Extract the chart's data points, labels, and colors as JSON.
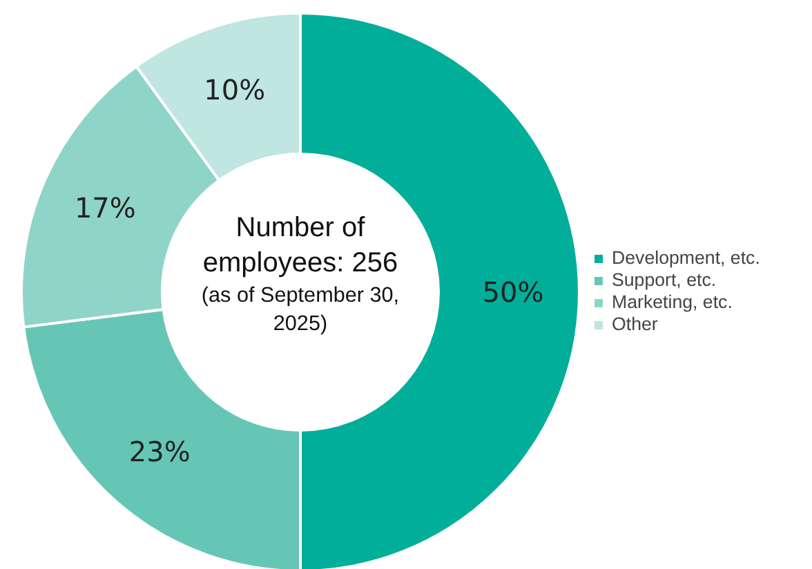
{
  "chart_data": {
    "type": "donut",
    "title": "Number of\nemployees: 256",
    "subtitle": "(as of September 30,\n2025)",
    "categories": [
      "Development, etc.",
      "Support, etc.",
      "Marketing, etc.",
      "Other"
    ],
    "values": [
      50,
      23,
      17,
      10
    ],
    "colors": [
      "#00ae9a",
      "#66c6b6",
      "#8fd4c8",
      "#bfe6e0"
    ],
    "value_labels": [
      "50%",
      "23%",
      "17%",
      "10%"
    ],
    "legend": "right"
  }
}
